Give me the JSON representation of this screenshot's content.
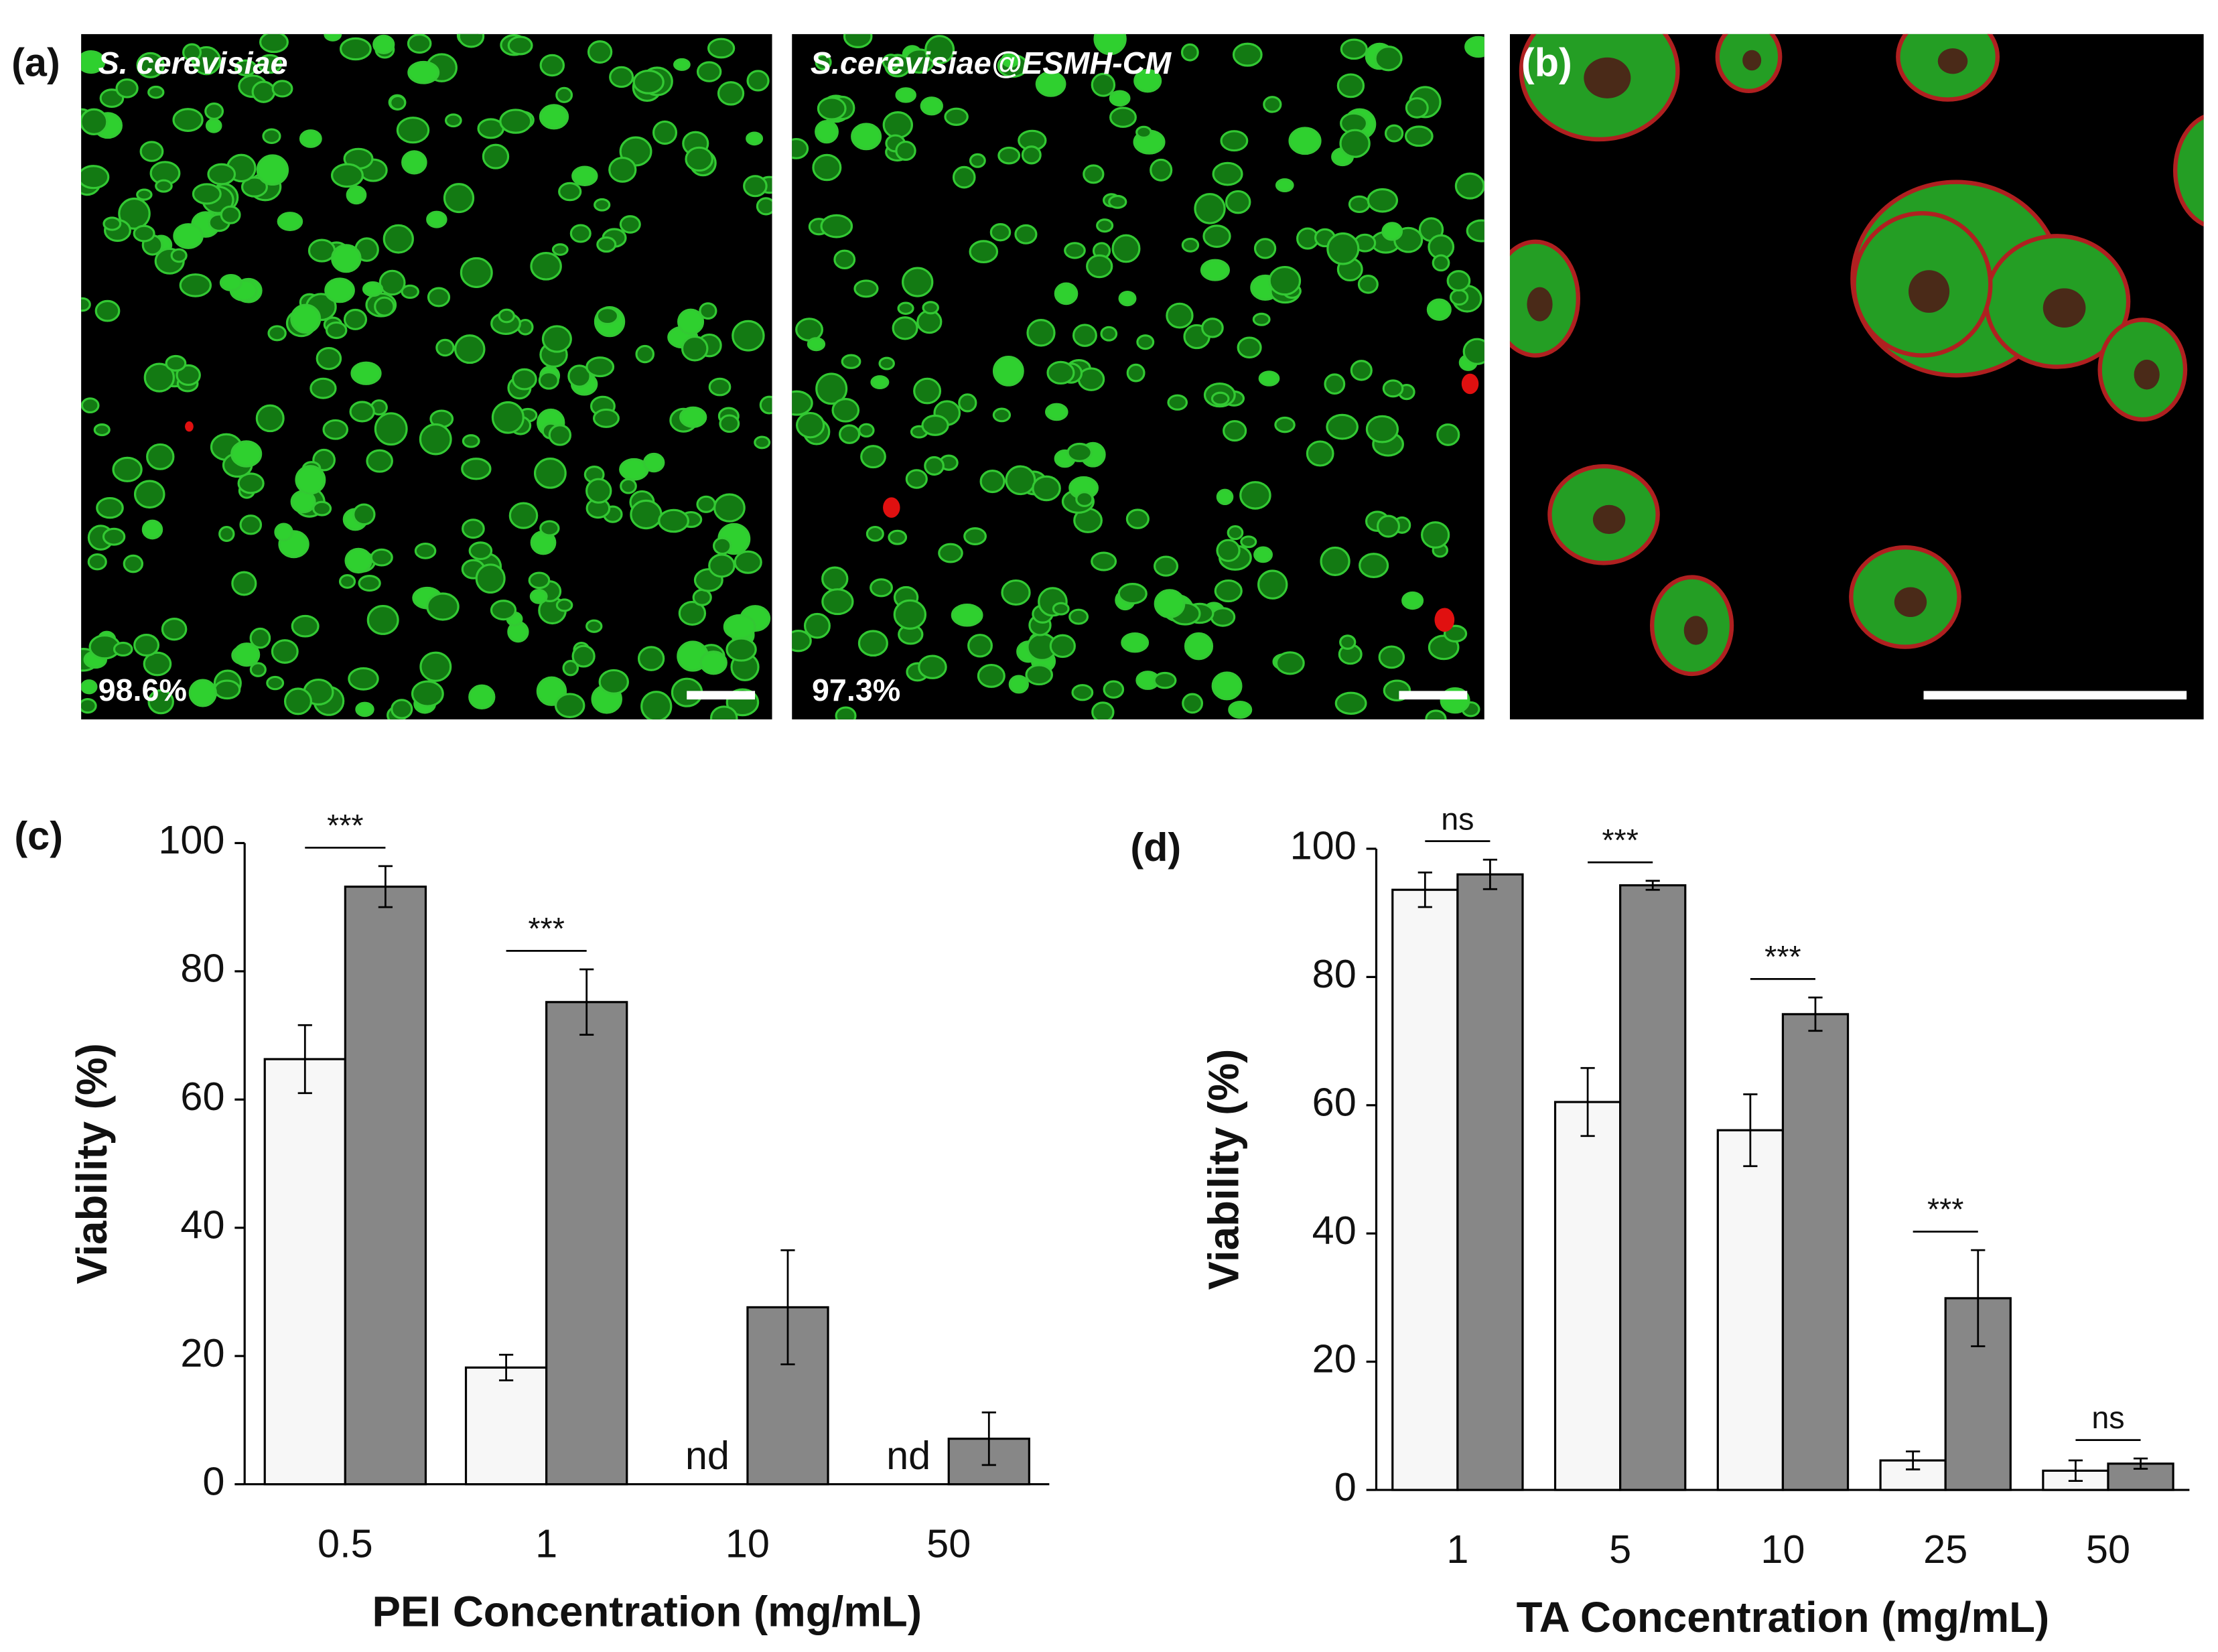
{
  "panels": {
    "a_label": "(a)",
    "image_1": {
      "title": "S. cerevisiae",
      "percent": "98.6%"
    },
    "image_2": {
      "title": "S.cerevisiae@ESMH-CM",
      "percent": "97.3%"
    },
    "b_label": "(b)"
  },
  "chart_data": [
    {
      "type": "bar",
      "panel": "(c)",
      "ylabel": "Viability (%)",
      "xlabel": "PEI Concentration (mg/mL)",
      "categories": [
        "0.5",
        "1",
        "10",
        "50"
      ],
      "ylim": [
        0,
        100
      ],
      "yticks": [
        0,
        20,
        40,
        60,
        80,
        100
      ],
      "grid": false,
      "series": [
        {
          "color": "#f7f7f7",
          "values": [
            66.3,
            18.2,
            null,
            null
          ],
          "errors": [
            5.3,
            2.0,
            null,
            null
          ],
          "value_labels": [
            null,
            null,
            "nd",
            "nd"
          ]
        },
        {
          "color": "#878787",
          "values": [
            93.2,
            75.2,
            27.6,
            7.1
          ],
          "errors": [
            3.2,
            5.1,
            8.9,
            4.1
          ]
        }
      ],
      "significance": [
        {
          "category": "0.5",
          "label": "***"
        },
        {
          "category": "1",
          "label": "***"
        }
      ]
    },
    {
      "type": "bar",
      "panel": "(d)",
      "ylabel": "Viability (%)",
      "xlabel": "TA Concentration (mg/mL)",
      "categories": [
        "1",
        "5",
        "10",
        "25",
        "50"
      ],
      "ylim": [
        0,
        100
      ],
      "yticks": [
        0,
        20,
        40,
        60,
        80,
        100
      ],
      "grid": false,
      "series": [
        {
          "color": "#f7f7f7",
          "values": [
            93.6,
            60.5,
            56.1,
            4.6,
            3.0
          ],
          "errors": [
            2.7,
            5.3,
            5.6,
            1.4,
            1.6
          ]
        },
        {
          "color": "#878787",
          "values": [
            96.0,
            94.3,
            74.2,
            29.9,
            4.1
          ],
          "errors": [
            2.3,
            0.7,
            2.6,
            7.5,
            0.8
          ]
        }
      ],
      "significance": [
        {
          "category": "1",
          "label": "ns"
        },
        {
          "category": "5",
          "label": "***"
        },
        {
          "category": "10",
          "label": "***"
        },
        {
          "category": "25",
          "label": "***"
        },
        {
          "category": "50",
          "label": "ns"
        }
      ]
    }
  ]
}
